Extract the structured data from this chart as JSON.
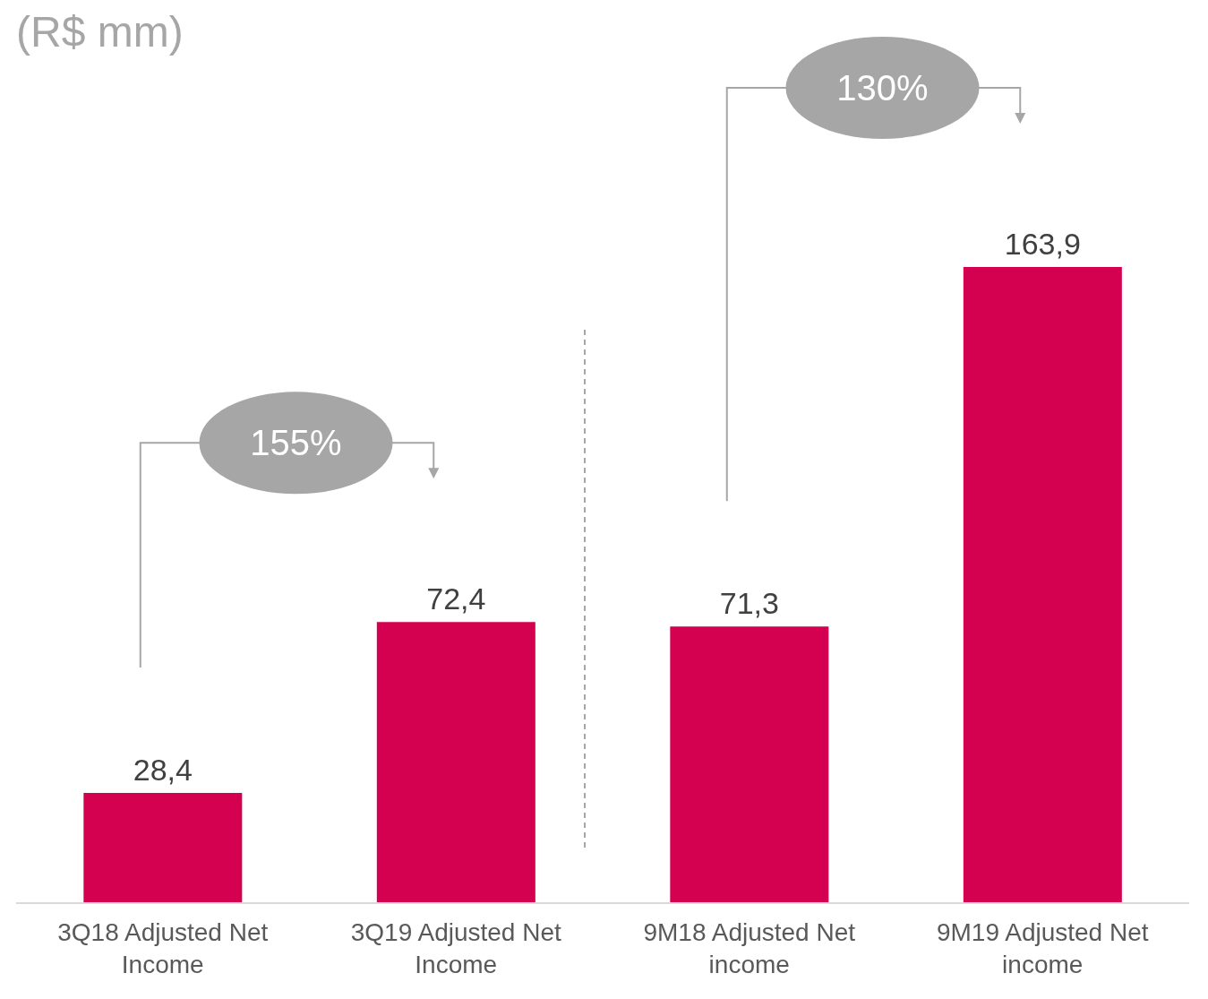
{
  "chart_data": {
    "type": "bar",
    "title": "(R$ mm)",
    "categories": [
      "3Q18 Adjusted Net Income",
      "3Q19 Adjusted Net Income",
      "9M18 Adjusted Net income",
      "9M19 Adjusted Net income"
    ],
    "values": [
      28.4,
      72.4,
      71.3,
      163.9
    ],
    "value_labels": [
      "28,4",
      "72,4",
      "71,3",
      "163,9"
    ],
    "color": "#d40050",
    "annotations": [
      "155%",
      "130%"
    ]
  }
}
